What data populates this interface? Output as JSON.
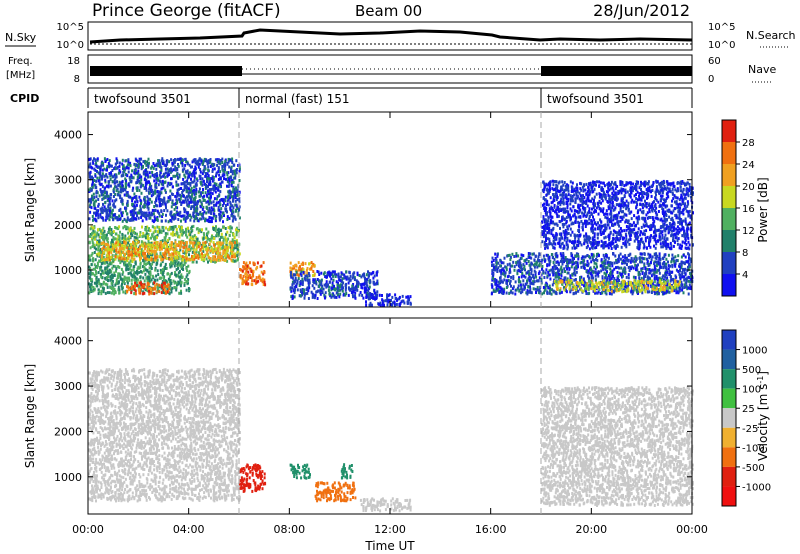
{
  "header": {
    "station": "Prince George (fitACF)",
    "beam": "Beam 00",
    "date": "28/Jun/2012"
  },
  "noise_panel": {
    "left_label": "N.Sky",
    "right_label": "N.Search",
    "left_ticks": [
      "10^5",
      "10^0"
    ],
    "right_ticks": [
      "10^5",
      "10^0"
    ]
  },
  "freq_panel": {
    "left_label_line1": "Freq.",
    "left_label_line2": "[MHz]",
    "right_label": "Nave",
    "left_ticks": [
      "18",
      "8"
    ],
    "right_ticks": [
      "60",
      "0"
    ]
  },
  "cpid": {
    "label": "CPID",
    "segments": [
      {
        "name": "twofsound 3501",
        "start": 0,
        "end": 6
      },
      {
        "name": "normal (fast) 151",
        "start": 6,
        "end": 18
      },
      {
        "name": "twofsound 3501",
        "start": 18,
        "end": 24
      }
    ]
  },
  "axes": {
    "ylabel": "Slant Range [km]",
    "yticks": [
      "1000",
      "2000",
      "3000",
      "4000"
    ],
    "xticks": [
      "00:00",
      "04:00",
      "08:00",
      "12:00",
      "16:00",
      "20:00",
      "00:00"
    ],
    "xlabel": "Time UT"
  },
  "power_scale": {
    "label": "Power [dB]",
    "ticks": [
      "4",
      "8",
      "12",
      "16",
      "20",
      "24",
      "28"
    ],
    "colors": [
      "#1010f0",
      "#2040c0",
      "#20806a",
      "#50b060",
      "#c8d820",
      "#f0a020",
      "#f07010",
      "#e02010"
    ]
  },
  "velocity_scale": {
    "label": "Velocity [m s^-1]",
    "ticks": [
      "1000",
      "500",
      "100",
      "25",
      "-25",
      "-100",
      "-500",
      "-1000"
    ],
    "colors": [
      "#2040c0",
      "#2060a0",
      "#20906a",
      "#40c040",
      "#c8c8c8",
      "#f0b030",
      "#f07010",
      "#e02010",
      "#f01010"
    ]
  },
  "chart_data": {
    "type": "heatmap",
    "x_range_hours": [
      0,
      24
    ],
    "y_range_km": [
      180,
      4500
    ],
    "mode_changes_hours": [
      6,
      18
    ],
    "power_regions": [
      {
        "t0": 0.0,
        "t1": 6.0,
        "r0": 2100,
        "r1": 3500,
        "value_db": 6
      },
      {
        "t0": 0.0,
        "t1": 6.0,
        "r0": 1200,
        "r1": 2000,
        "value_db": 14
      },
      {
        "t0": 0.5,
        "t1": 5.8,
        "r0": 1250,
        "r1": 1650,
        "value_db": 22
      },
      {
        "t0": 0.0,
        "t1": 4.0,
        "r0": 500,
        "r1": 1200,
        "value_db": 12
      },
      {
        "t0": 1.5,
        "t1": 3.2,
        "r0": 500,
        "r1": 750,
        "value_db": 26
      },
      {
        "t0": 6.0,
        "t1": 7.0,
        "r0": 700,
        "r1": 1200,
        "value_db": 26
      },
      {
        "t0": 8.0,
        "t1": 9.0,
        "r0": 900,
        "r1": 1200,
        "value_db": 22
      },
      {
        "t0": 8.0,
        "t1": 11.5,
        "r0": 400,
        "r1": 1000,
        "value_db": 6
      },
      {
        "t0": 11.0,
        "t1": 12.8,
        "r0": 250,
        "r1": 500,
        "value_db": 4
      },
      {
        "t0": 18.0,
        "t1": 24.0,
        "r0": 1500,
        "r1": 3000,
        "value_db": 4
      },
      {
        "t0": 16.0,
        "t1": 24.0,
        "r0": 500,
        "r1": 1400,
        "value_db": 6
      },
      {
        "t0": 18.5,
        "t1": 23.5,
        "r0": 550,
        "r1": 800,
        "value_db": 18
      }
    ],
    "velocity_regions": [
      {
        "t0": 0.0,
        "t1": 6.0,
        "r0": 500,
        "r1": 3400,
        "value_ms": 0
      },
      {
        "t0": 6.0,
        "t1": 7.0,
        "r0": 700,
        "r1": 1300,
        "value_ms": -700
      },
      {
        "t0": 8.0,
        "t1": 8.8,
        "r0": 1000,
        "r1": 1300,
        "value_ms": 150
      },
      {
        "t0": 10.0,
        "t1": 10.5,
        "r0": 1000,
        "r1": 1300,
        "value_ms": 250
      },
      {
        "t0": 9.0,
        "t1": 10.6,
        "r0": 500,
        "r1": 900,
        "value_ms": -150
      },
      {
        "t0": 10.8,
        "t1": 12.8,
        "r0": 280,
        "r1": 550,
        "value_ms": 0
      },
      {
        "t0": 18.0,
        "t1": 24.0,
        "r0": 400,
        "r1": 3000,
        "value_ms": 0
      }
    ]
  }
}
